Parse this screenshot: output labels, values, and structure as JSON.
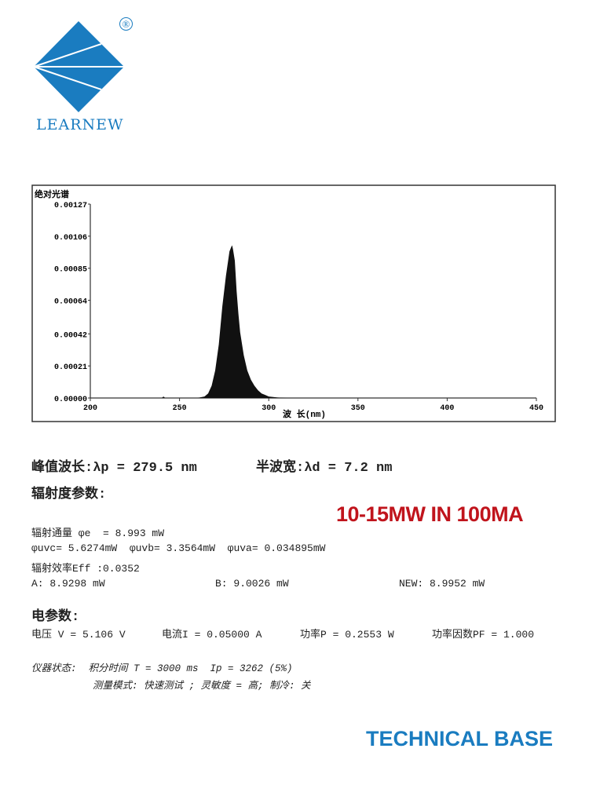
{
  "brand": {
    "name": "LEARNEW",
    "registered": "®",
    "color": "#1a7cc0"
  },
  "chart_data": {
    "type": "area",
    "title": "绝对光谱",
    "xlabel": "波 长(nm)",
    "ylabel": "",
    "xlim": [
      200,
      450
    ],
    "ylim": [
      0,
      0.00127
    ],
    "xticks": [
      "200",
      "250",
      "300",
      "350",
      "400",
      "450"
    ],
    "yticks": [
      "0.00000",
      "0.00021",
      "0.00042",
      "0.00064",
      "0.00085",
      "0.00106",
      "0.00127"
    ],
    "grid": false,
    "series": [
      {
        "color": "#111111",
        "x": [
          240,
          241,
          242,
          260,
          264,
          266,
          268,
          270,
          272,
          274,
          276,
          278,
          279,
          279.5,
          280,
          281,
          282,
          283,
          284,
          286,
          288,
          290,
          292,
          294,
          296,
          298,
          300,
          305,
          310
        ],
        "y": [
          0,
          1e-05,
          0,
          0,
          1e-05,
          3e-05,
          8e-05,
          0.00018,
          0.00035,
          0.0006,
          0.0008,
          0.00096,
          0.00099,
          0.001,
          0.00097,
          0.0009,
          0.0007,
          0.00055,
          0.00043,
          0.00028,
          0.00018,
          0.00012,
          8e-05,
          5e-05,
          3e-05,
          2e-05,
          1e-05,
          3e-06,
          0
        ]
      }
    ]
  },
  "peak": {
    "label": "峰值波长:λp = 279.5 nm",
    "halfwidth": "半波宽:λd = 7.2 nm"
  },
  "radiometric": {
    "heading": "辐射度参数:",
    "flux": "辐射通量 φe  = 8.993 mW",
    "bands": "φuvc= 5.6274mW  φuvb= 3.3564mW  φuva= 0.034895mW",
    "efficiency": "辐射效率Eff :0.0352",
    "a": "A: 8.9298 mW",
    "b": "B: 9.0026 mW",
    "new": "NEW: 8.9952 mW"
  },
  "note": {
    "text": "10-15MW IN 100MA",
    "color": "#c0141c"
  },
  "electrical": {
    "heading": "电参数:",
    "voltage": "电压 V = 5.106 V",
    "current": "电流I = 0.05000 A",
    "power": "功率P = 0.2553 W",
    "pf": "功率因数PF = 1.000"
  },
  "instrument": {
    "status": "仪器状态:  积分时间 T = 3000 ms  Ip = 3262 (5%)",
    "mode": "测量模式: 快速测试 ; 灵敏度 = 高; 制冷: 关"
  },
  "footer": {
    "text": "TECHNICAL BASE"
  }
}
